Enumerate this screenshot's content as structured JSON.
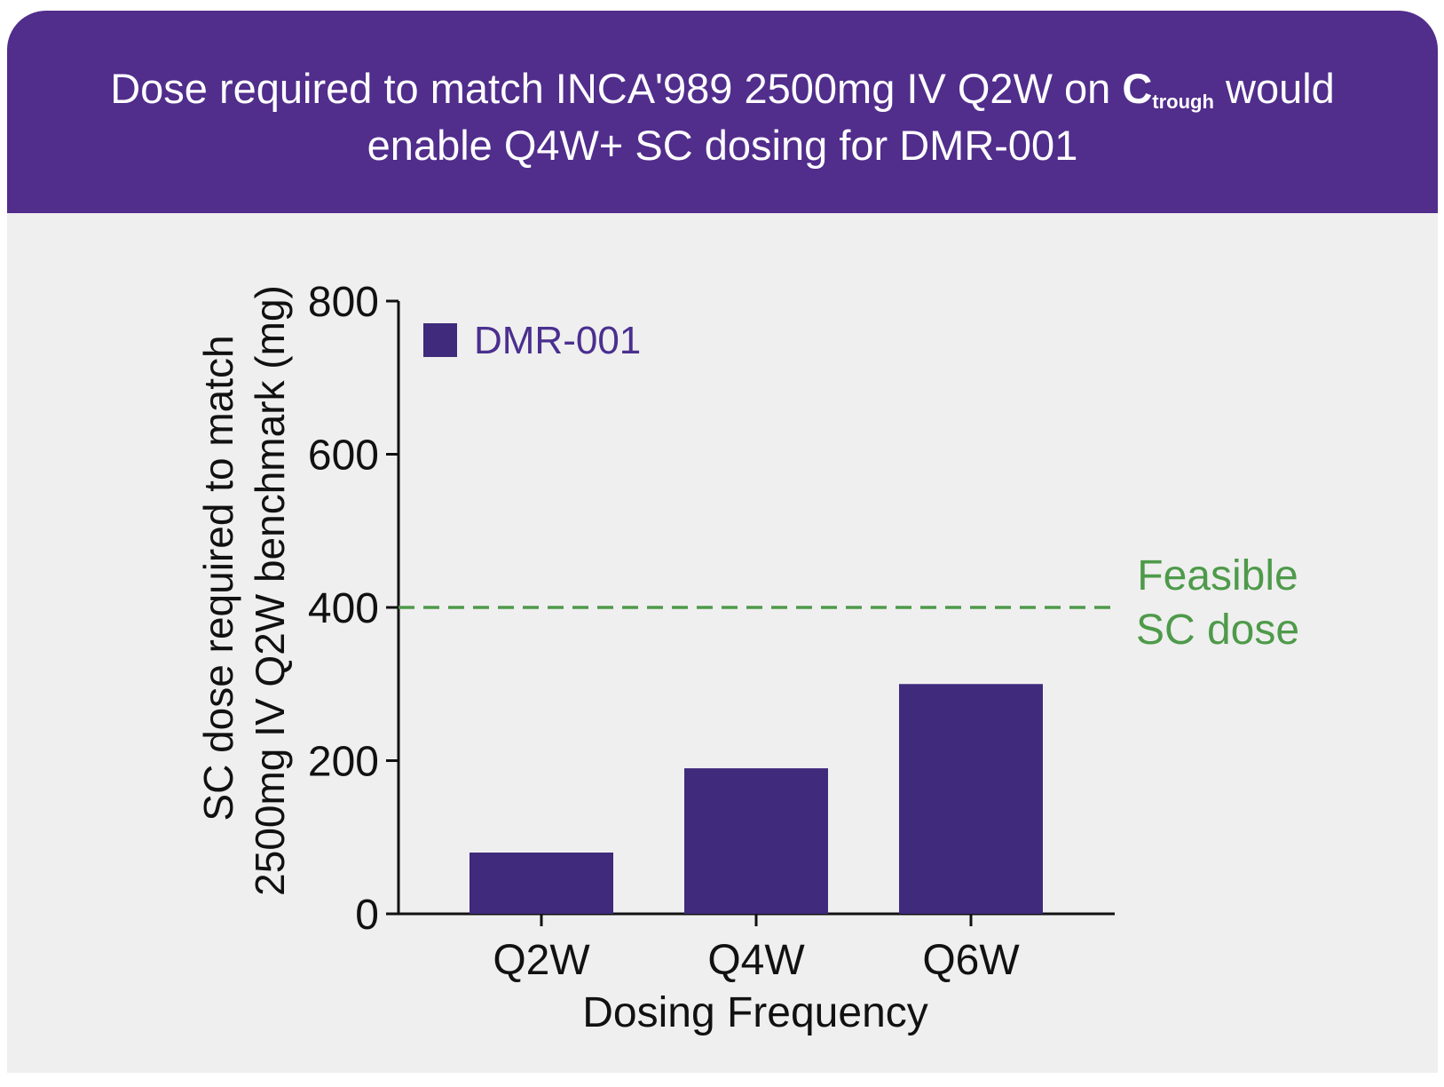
{
  "header": {
    "title_line1_part1": "Dose required to match INCA'989 2500mg IV Q2W on ",
    "title_c": "C",
    "title_sub": "trough",
    "title_line1_part2": " would",
    "title_line2": "enable Q4W+ SC dosing for DMR-001"
  },
  "colors": {
    "header_bg": "#512d8c",
    "bar": "#3f2a7c",
    "legend_text": "#4a2f8f",
    "reference_line": "#4e9a4a",
    "panel_bg": "#efefef"
  },
  "chart_data": {
    "type": "bar",
    "categories": [
      "Q2W",
      "Q4W",
      "Q6W"
    ],
    "series": [
      {
        "name": "DMR-001",
        "values": [
          80,
          190,
          300
        ]
      }
    ],
    "ylim": [
      0,
      800
    ],
    "yticks": [
      0,
      200,
      400,
      600,
      800
    ],
    "xlabel": "Dosing Frequency",
    "ylabel_line1": "SC dose required to match",
    "ylabel_line2": "2500mg IV Q2W benchmark (mg)",
    "legend_position": "top-left",
    "reference_line": {
      "value": 400,
      "label_line1": "Feasible",
      "label_line2": "SC dose",
      "style": "dashed"
    },
    "grid": false
  }
}
